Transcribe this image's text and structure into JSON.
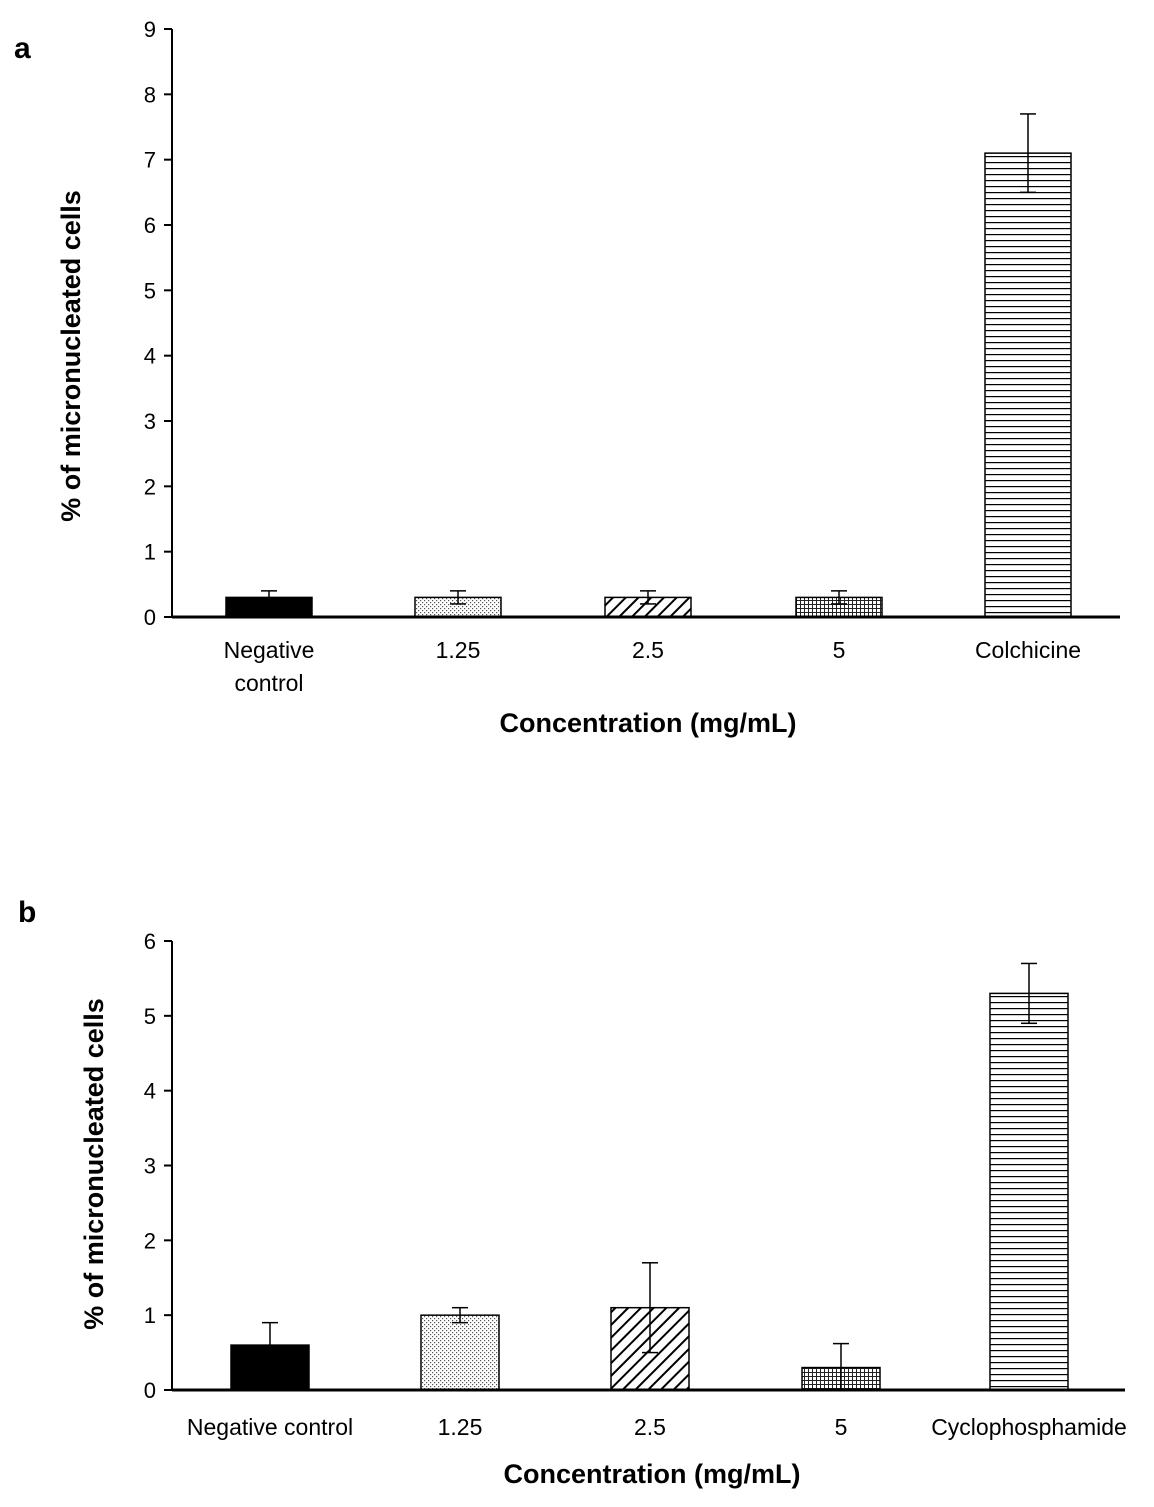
{
  "chart_data": [
    {
      "type": "bar",
      "panel_label": "a",
      "categories": [
        "Negative control",
        "1.25",
        "2.5",
        "5",
        "Colchicine"
      ],
      "category_lines": [
        [
          "Negative",
          "control"
        ],
        [
          "1.25"
        ],
        [
          "2.5"
        ],
        [
          "5"
        ],
        [
          "Colchicine"
        ]
      ],
      "values": [
        0.3,
        0.3,
        0.3,
        0.3,
        7.1
      ],
      "errors": [
        0.1,
        0.1,
        0.1,
        0.1,
        0.6
      ],
      "fill_patterns": [
        "solid",
        "dots",
        "diagonal",
        "grid",
        "horizontal"
      ],
      "xlabel": "Concentration (mg/mL)",
      "ylabel": "% of micronucleated cells",
      "ylim": [
        0,
        9
      ],
      "yticks": [
        0,
        1,
        2,
        3,
        4,
        5,
        6,
        7,
        8,
        9
      ],
      "grid": false
    },
    {
      "type": "bar",
      "panel_label": "b",
      "categories": [
        "Negative control",
        "1.25",
        "2.5",
        "5",
        "Cyclophosphamide"
      ],
      "category_lines": [
        [
          "Negative control"
        ],
        [
          "1.25"
        ],
        [
          "2.5"
        ],
        [
          "5"
        ],
        [
          "Cyclophosphamide"
        ]
      ],
      "values": [
        0.6,
        1.0,
        1.1,
        0.3,
        5.3
      ],
      "errors": [
        0.3,
        0.1,
        0.6,
        0.32,
        0.4
      ],
      "fill_patterns": [
        "solid",
        "dots",
        "diagonal",
        "grid",
        "horizontal"
      ],
      "xlabel": "Concentration (mg/mL)",
      "ylabel": "% of micronucleated cells",
      "ylim": [
        0,
        6
      ],
      "yticks": [
        0,
        1,
        2,
        3,
        4,
        5,
        6
      ],
      "grid": false
    }
  ]
}
